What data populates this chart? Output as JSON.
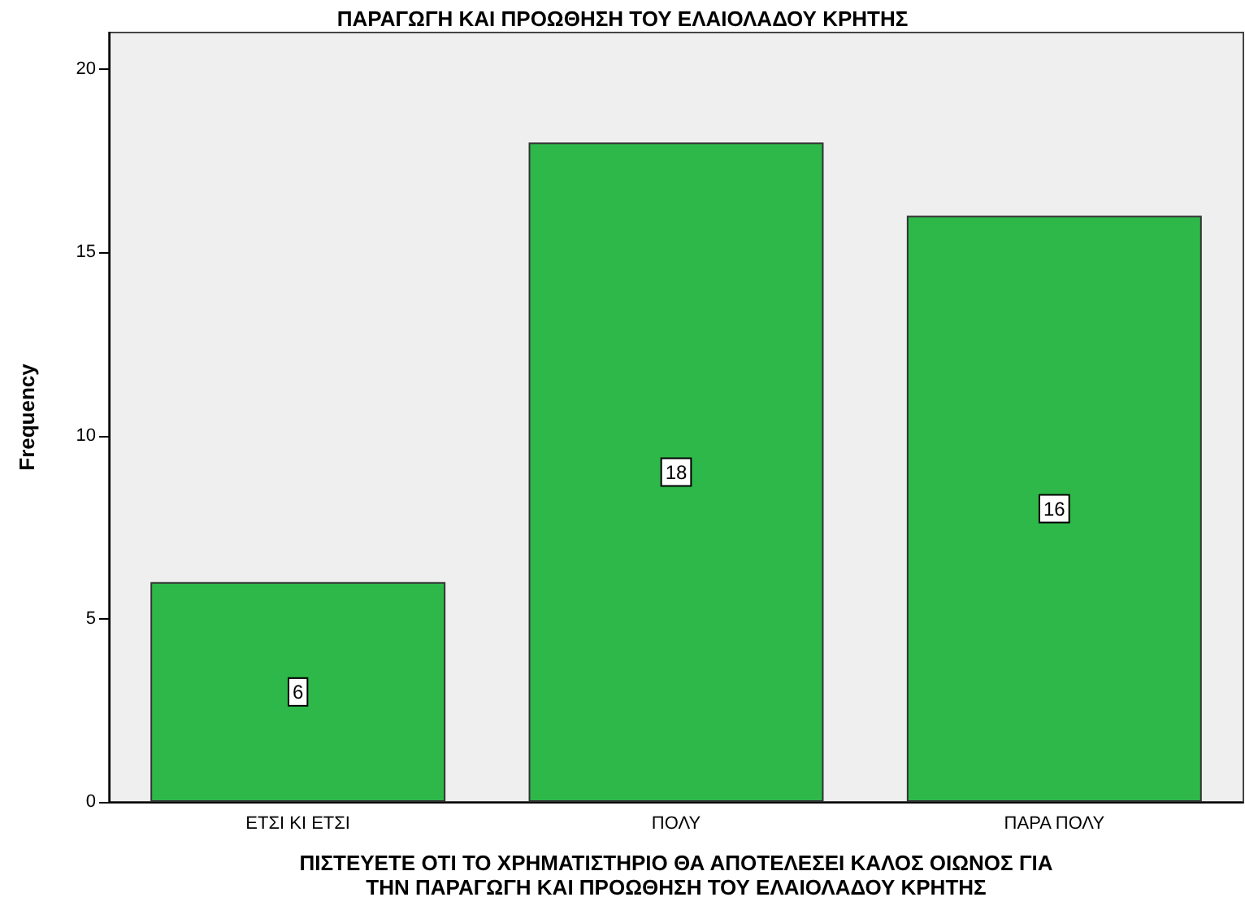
{
  "chart_data": {
    "type": "bar",
    "title": "ΠΑΡΑΓΩΓΗ ΚΑΙ ΠΡΟΩΘΗΣΗ ΤΟΥ ΕΛΑΙΟΛΑΔΟΥ ΚΡΗΤΗΣ",
    "xlabel": "ΠΙΣΤΕΥΕΤΕ ΟΤΙ ΤΟ ΧΡΗΜΑΤΙΣΤΗΡΙΟ ΘΑ ΑΠΟΤΕΛΕΣΕΙ ΚΑΛΟΣ ΟΙΩΝΟΣ ΓΙΑ\nΤΗΝ ΠΑΡΑΓΩΓΗ ΚΑΙ ΠΡΟΩΘΗΣΗ ΤΟΥ ΕΛΑΙΟΛΑΔΟΥ ΚΡΗΤΗΣ",
    "ylabel": "Frequency",
    "categories": [
      "ΕΤΣΙ ΚΙ ΕΤΣΙ",
      "ΠΟΛΥ",
      "ΠΑΡΑ ΠΟΛΥ"
    ],
    "values": [
      6,
      18,
      16
    ],
    "color": "#2eb84a",
    "ylim": [
      0,
      21
    ],
    "yticks": [
      0,
      5,
      10,
      15,
      20
    ],
    "grid": false,
    "data_labels": true
  }
}
